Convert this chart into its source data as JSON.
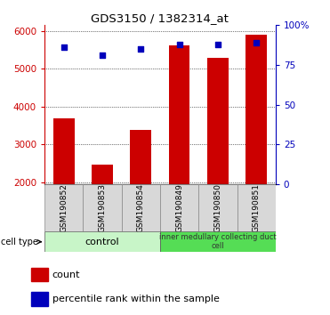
{
  "title": "GDS3150 / 1382314_at",
  "samples": [
    "GSM190852",
    "GSM190853",
    "GSM190854",
    "GSM190849",
    "GSM190850",
    "GSM190851"
  ],
  "counts": [
    3700,
    2480,
    3380,
    5620,
    5280,
    5900
  ],
  "percentile_ranks": [
    86,
    81,
    85,
    88,
    88,
    89
  ],
  "ylim_left": [
    1950,
    6150
  ],
  "ylim_right": [
    0,
    100
  ],
  "yticks_left": [
    2000,
    3000,
    4000,
    5000,
    6000
  ],
  "yticks_right": [
    0,
    25,
    50,
    75,
    100
  ],
  "bar_color": "#CC0000",
  "dot_color": "#0000BB",
  "bar_bottom": 1950,
  "left_axis_color": "#CC0000",
  "right_axis_color": "#0000BB",
  "control_color": "#c8f5c8",
  "imcd_color": "#55dd55",
  "bg_color": "#d8d8d8",
  "control_label": "control",
  "imcd_label": "inner medullary collecting duct\ncell",
  "cell_type_label": "cell type",
  "count_label": "count",
  "percentile_label": "percentile rank within the sample"
}
